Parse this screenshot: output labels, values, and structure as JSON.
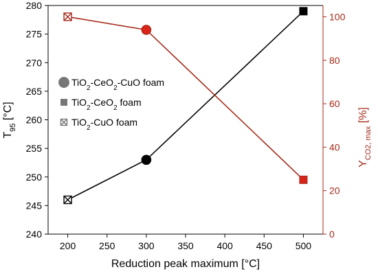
{
  "chart_data": {
    "type": "line",
    "xlabel": "Reduction peak maximum  [°C]",
    "ylabel_left": {
      "main": "T",
      "sub": "95",
      "rest": " [°C]"
    },
    "ylabel_right": {
      "main": "Y",
      "sub": "CO2, max",
      "rest": " [%]"
    },
    "xlim": [
      175,
      525
    ],
    "xticks": [
      200,
      250,
      300,
      350,
      400,
      450,
      500
    ],
    "ylim_left": [
      240,
      280
    ],
    "yticks_left": [
      240,
      245,
      250,
      255,
      260,
      265,
      270,
      275,
      280
    ],
    "ylim_right": [
      0,
      105.2
    ],
    "yticks_right": [
      0,
      20,
      40,
      60,
      80,
      100
    ],
    "colors": {
      "left_axis": "#000000",
      "right_axis": "#a52a1a",
      "right_fill": "#d8251a",
      "legend_marker": "#777777"
    },
    "series": [
      {
        "axis": "left",
        "color": "#000000",
        "points": [
          {
            "x": 200,
            "y": 246,
            "marker": "x-square"
          },
          {
            "x": 300,
            "y": 253,
            "marker": "circle"
          },
          {
            "x": 500,
            "y": 279,
            "marker": "square"
          }
        ]
      },
      {
        "axis": "right",
        "color": "#a52a1a",
        "points": [
          {
            "x": 200,
            "y": 100,
            "marker": "x-square"
          },
          {
            "x": 300,
            "y": 94,
            "marker": "circle"
          },
          {
            "x": 500,
            "y": 25,
            "marker": "square"
          }
        ]
      }
    ],
    "legend": {
      "placement": "center-left",
      "entries": [
        {
          "marker": "circle",
          "parts": [
            [
              "TiO",
              ""
            ],
            [
              "2",
              "sub"
            ],
            [
              "-CeO",
              ""
            ],
            [
              "2",
              "sub"
            ],
            [
              "-CuO foam",
              ""
            ]
          ]
        },
        {
          "marker": "square",
          "parts": [
            [
              "TiO",
              ""
            ],
            [
              "2",
              "sub"
            ],
            [
              "-CeO",
              ""
            ],
            [
              "2",
              "sub"
            ],
            [
              " foam",
              ""
            ]
          ]
        },
        {
          "marker": "x-square",
          "parts": [
            [
              "TiO",
              ""
            ],
            [
              "2",
              "sub"
            ],
            [
              "-CuO foam",
              ""
            ]
          ]
        }
      ]
    }
  }
}
